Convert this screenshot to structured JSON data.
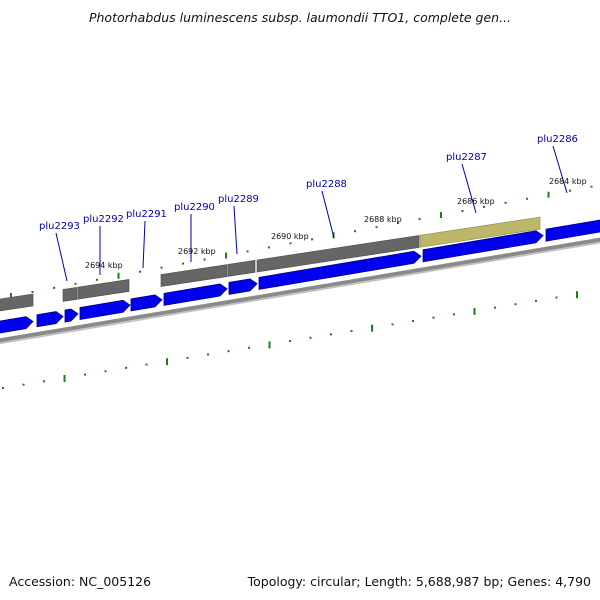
{
  "title": "Photorhabdus luminescens subsp. laumondii TTO1, complete gen...",
  "footer": {
    "accession": "Accession: NC_005126",
    "summary": "Topology: circular; Length: 5,688,987 bp; Genes: 4,790"
  },
  "colors": {
    "gene_fill": "#0000ee",
    "gene_stroke": "#00008a",
    "cds_gray": "#666666",
    "cds_highlight": "#bdb76b",
    "backbone": "#808080",
    "tick": "#1e7e1e",
    "label": "#0000aa"
  },
  "genes": [
    {
      "id": "plu2286",
      "label": "plu2286"
    },
    {
      "id": "plu2287",
      "label": "plu2287"
    },
    {
      "id": "plu2288",
      "label": "plu2288"
    },
    {
      "id": "plu2289",
      "label": "plu2289"
    },
    {
      "id": "plu2290",
      "label": "plu2290"
    },
    {
      "id": "plu2291",
      "label": "plu2291"
    },
    {
      "id": "plu2292",
      "label": "plu2292"
    },
    {
      "id": "plu2293",
      "label": "plu2293"
    }
  ],
  "kbp_labels": [
    "2684 kbp",
    "2686 kbp",
    "2688 kbp",
    "2690 kbp",
    "2692 kbp",
    "2694 kbp"
  ]
}
